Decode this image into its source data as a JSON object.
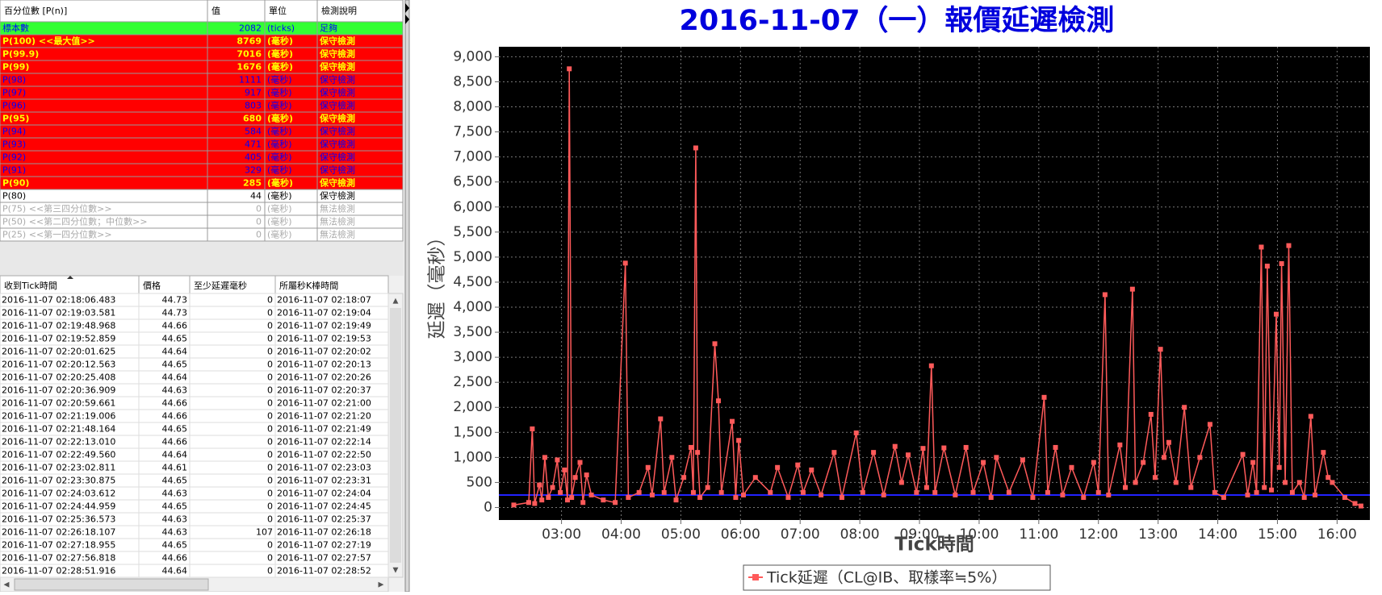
{
  "percentile_table": {
    "header": [
      "百分位數 [P(n)]",
      "值",
      "單位",
      "檢測說明"
    ],
    "rows": [
      {
        "cells": [
          "標本數",
          2082,
          "(ticks)",
          "足夠"
        ],
        "color": "#0000ff",
        "background": "#33ff33",
        "bold": false
      },
      {
        "cells": [
          "P(100)  <<最大值>>",
          8769,
          "(毫秒)",
          "保守檢測"
        ],
        "color": "#ffff00",
        "background": "#ff0000",
        "bold": true
      },
      {
        "cells": [
          "P(99.9)",
          7016,
          "(毫秒)",
          "保守檢測"
        ],
        "color": "#ffff00",
        "background": "#ff0000",
        "bold": true
      },
      {
        "cells": [
          "P(99)",
          1676,
          "(毫秒)",
          "保守檢測"
        ],
        "color": "#ffff00",
        "background": "#ff0000",
        "bold": true
      },
      {
        "cells": [
          "P(98)",
          1111,
          "(毫秒)",
          "保守檢測"
        ],
        "color": "#0000ff",
        "background": "#ff0000",
        "bold": false
      },
      {
        "cells": [
          "P(97)",
          917,
          "(毫秒)",
          "保守檢測"
        ],
        "color": "#0000ff",
        "background": "#ff0000",
        "bold": false
      },
      {
        "cells": [
          "P(96)",
          803,
          "(毫秒)",
          "保守檢測"
        ],
        "color": "#0000ff",
        "background": "#ff0000",
        "bold": false
      },
      {
        "cells": [
          "P(95)",
          680,
          "(毫秒)",
          "保守檢測"
        ],
        "color": "#ffff00",
        "background": "#ff0000",
        "bold": true
      },
      {
        "cells": [
          "P(94)",
          584,
          "(毫秒)",
          "保守檢測"
        ],
        "color": "#0000ff",
        "background": "#ff0000",
        "bold": false
      },
      {
        "cells": [
          "P(93)",
          471,
          "(毫秒)",
          "保守檢測"
        ],
        "color": "#0000ff",
        "background": "#ff0000",
        "bold": false
      },
      {
        "cells": [
          "P(92)",
          405,
          "(毫秒)",
          "保守檢測"
        ],
        "color": "#0000ff",
        "background": "#ff0000",
        "bold": false
      },
      {
        "cells": [
          "P(91)",
          329,
          "(毫秒)",
          "保守檢測"
        ],
        "color": "#0000ff",
        "background": "#ff0000",
        "bold": false
      },
      {
        "cells": [
          "P(90)",
          285,
          "(毫秒)",
          "保守檢測"
        ],
        "color": "#ffff00",
        "background": "#ff0000",
        "bold": true
      },
      {
        "cells": [
          "P(80)",
          44,
          "(毫秒)",
          "保守檢測"
        ],
        "color": "#000000",
        "background": "#ffffff",
        "bold": false
      },
      {
        "cells": [
          "P(75)  <<第三四分位數>>",
          0,
          "(毫秒)",
          "無法檢測"
        ],
        "color": "#aaaaaa",
        "background": "#ffffff",
        "bold": false
      },
      {
        "cells": [
          "P(50)  <<第二四分位數；中位數>>",
          0,
          "(毫秒)",
          "無法檢測"
        ],
        "color": "#aaaaaa",
        "background": "#ffffff",
        "bold": false
      },
      {
        "cells": [
          "P(25)  <<第一四分位數>>",
          0,
          "(毫秒)",
          "無法檢測"
        ],
        "color": "#aaaaaa",
        "background": "#ffffff",
        "bold": false
      }
    ]
  },
  "tick_table": {
    "header": [
      "收到Tick時間",
      "價格",
      "至少延遲毫秒",
      "所屬秒K棒時間"
    ],
    "rows": [
      [
        "2016-11-07 02:18:06.483",
        44.73,
        0,
        "2016-11-07 02:18:07"
      ],
      [
        "2016-11-07 02:19:03.581",
        44.73,
        0,
        "2016-11-07 02:19:04"
      ],
      [
        "2016-11-07 02:19:48.968",
        44.66,
        0,
        "2016-11-07 02:19:49"
      ],
      [
        "2016-11-07 02:19:52.859",
        44.65,
        0,
        "2016-11-07 02:19:53"
      ],
      [
        "2016-11-07 02:20:01.625",
        44.64,
        0,
        "2016-11-07 02:20:02"
      ],
      [
        "2016-11-07 02:20:12.563",
        44.65,
        0,
        "2016-11-07 02:20:13"
      ],
      [
        "2016-11-07 02:20:25.408",
        44.64,
        0,
        "2016-11-07 02:20:26"
      ],
      [
        "2016-11-07 02:20:36.909",
        44.63,
        0,
        "2016-11-07 02:20:37"
      ],
      [
        "2016-11-07 02:20:59.661",
        44.66,
        0,
        "2016-11-07 02:21:00"
      ],
      [
        "2016-11-07 02:21:19.006",
        44.66,
        0,
        "2016-11-07 02:21:20"
      ],
      [
        "2016-11-07 02:21:48.164",
        44.65,
        0,
        "2016-11-07 02:21:49"
      ],
      [
        "2016-11-07 02:22:13.010",
        44.66,
        0,
        "2016-11-07 02:22:14"
      ],
      [
        "2016-11-07 02:22:49.560",
        44.64,
        0,
        "2016-11-07 02:22:50"
      ],
      [
        "2016-11-07 02:23:02.811",
        44.61,
        0,
        "2016-11-07 02:23:03"
      ],
      [
        "2016-11-07 02:23:30.875",
        44.65,
        0,
        "2016-11-07 02:23:31"
      ],
      [
        "2016-11-07 02:24:03.612",
        44.63,
        0,
        "2016-11-07 02:24:04"
      ],
      [
        "2016-11-07 02:24:44.959",
        44.65,
        0,
        "2016-11-07 02:24:45"
      ],
      [
        "2016-11-07 02:25:36.573",
        44.63,
        0,
        "2016-11-07 02:25:37"
      ],
      [
        "2016-11-07 02:26:18.107",
        44.63,
        107,
        "2016-11-07 02:26:18"
      ],
      [
        "2016-11-07 02:27:18.955",
        44.65,
        0,
        "2016-11-07 02:27:19"
      ],
      [
        "2016-11-07 02:27:56.818",
        44.66,
        0,
        "2016-11-07 02:27:57"
      ],
      [
        "2016-11-07 02:28:51.916",
        44.64,
        0,
        "2016-11-07 02:28:52"
      ]
    ]
  },
  "chart_data": {
    "type": "line",
    "title": "2016-11-07（一）報價延遲檢測",
    "x_label": "Tick時間",
    "y_label": "延遲（毫秒）",
    "xlim": [
      1.95,
      16.55
    ],
    "xticks": [
      {
        "value": 3,
        "label": "03:00"
      },
      {
        "value": 4,
        "label": "04:00"
      },
      {
        "value": 5,
        "label": "05:00"
      },
      {
        "value": 6,
        "label": "06:00"
      },
      {
        "value": 7,
        "label": "07:00"
      },
      {
        "value": 8,
        "label": "08:00"
      },
      {
        "value": 9,
        "label": "09:00"
      },
      {
        "value": 10,
        "label": "10:00"
      },
      {
        "value": 11,
        "label": "11:00"
      },
      {
        "value": 12,
        "label": "12:00"
      },
      {
        "value": 13,
        "label": "13:00"
      },
      {
        "value": 14,
        "label": "14:00"
      },
      {
        "value": 15,
        "label": "15:00"
      },
      {
        "value": 16,
        "label": "16:00"
      }
    ],
    "ylim": [
      -250,
      9200
    ],
    "yticks": [
      0,
      500,
      {
        "value": 1000,
        "label": "1,000"
      },
      {
        "value": 1500,
        "label": "1,500"
      },
      {
        "value": 2000,
        "label": "2,000"
      },
      {
        "value": 2500,
        "label": "2,500"
      },
      {
        "value": 3000,
        "label": "3,000"
      },
      {
        "value": 3500,
        "label": "3,500"
      },
      {
        "value": 4000,
        "label": "4,000"
      },
      {
        "value": 4500,
        "label": "4,500"
      },
      {
        "value": 5000,
        "label": "5,000"
      },
      {
        "value": 5500,
        "label": "5,500"
      },
      {
        "value": 6000,
        "label": "6,000"
      },
      {
        "value": 6500,
        "label": "6,500"
      },
      {
        "value": 7000,
        "label": "7,000"
      },
      {
        "value": 7500,
        "label": "7,500"
      },
      {
        "value": 8000,
        "label": "8,000"
      },
      {
        "value": 8500,
        "label": "8,500"
      },
      {
        "value": 9000,
        "label": "9,000"
      }
    ],
    "grid": true,
    "legend": "bottom",
    "hline": {
      "value": 250,
      "color": "#2222ff"
    },
    "x": [
      2.2,
      2.45,
      2.51,
      2.55,
      2.63,
      2.67,
      2.72,
      2.78,
      2.85,
      2.93,
      2.98,
      3.05,
      3.1,
      3.13,
      3.17,
      3.23,
      3.31,
      3.36,
      3.42,
      3.5,
      3.7,
      3.9,
      4.07,
      4.12,
      4.3,
      4.45,
      4.52,
      4.66,
      4.72,
      4.85,
      4.92,
      5.05,
      5.17,
      5.21,
      5.25,
      5.28,
      5.32,
      5.45,
      5.57,
      5.63,
      5.68,
      5.86,
      5.92,
      5.97,
      6.05,
      6.25,
      6.5,
      6.62,
      6.8,
      6.96,
      7.05,
      7.19,
      7.35,
      7.57,
      7.7,
      7.94,
      8.05,
      8.23,
      8.4,
      8.59,
      8.7,
      8.81,
      8.95,
      9.06,
      9.12,
      9.2,
      9.26,
      9.41,
      9.6,
      9.78,
      9.9,
      10.07,
      10.2,
      10.29,
      10.5,
      10.73,
      10.9,
      11.09,
      11.15,
      11.28,
      11.4,
      11.55,
      11.75,
      11.92,
      12.0,
      12.11,
      12.17,
      12.36,
      12.45,
      12.57,
      12.62,
      12.75,
      12.88,
      12.95,
      13.04,
      13.1,
      13.18,
      13.3,
      13.44,
      13.55,
      13.7,
      13.87,
      13.95,
      14.1,
      14.42,
      14.5,
      14.59,
      14.65,
      14.73,
      14.78,
      14.83,
      14.9,
      14.98,
      15.03,
      15.07,
      15.13,
      15.19,
      15.25,
      15.37,
      15.45,
      15.56,
      15.63,
      15.77,
      15.85,
      15.92,
      16.13,
      16.3,
      16.4
    ],
    "series": [
      {
        "name": "Tick延遲（CL@IB、取樣率≒5%）",
        "color": "#ff5a5a",
        "values": [
          50,
          100,
          1570,
          80,
          450,
          150,
          1000,
          200,
          400,
          950,
          300,
          750,
          150,
          8760,
          200,
          600,
          900,
          100,
          650,
          250,
          150,
          100,
          4880,
          200,
          300,
          800,
          250,
          1770,
          300,
          1000,
          150,
          600,
          1200,
          300,
          7180,
          1100,
          200,
          400,
          3270,
          2130,
          300,
          1720,
          200,
          1340,
          250,
          600,
          300,
          800,
          200,
          850,
          300,
          750,
          250,
          1100,
          200,
          1490,
          300,
          1100,
          250,
          1220,
          500,
          1050,
          300,
          1180,
          400,
          2830,
          300,
          1190,
          250,
          1200,
          300,
          900,
          200,
          1000,
          300,
          950,
          200,
          2200,
          300,
          1200,
          250,
          800,
          200,
          900,
          300,
          4250,
          250,
          1250,
          400,
          4360,
          500,
          900,
          1860,
          600,
          3160,
          1000,
          1300,
          500,
          2000,
          400,
          1000,
          1660,
          300,
          200,
          1060,
          250,
          900,
          300,
          5200,
          400,
          4820,
          350,
          3860,
          800,
          4870,
          500,
          5230,
          300,
          500,
          200,
          1820,
          250,
          1100,
          600,
          500,
          200,
          80,
          30
        ]
      }
    ]
  }
}
